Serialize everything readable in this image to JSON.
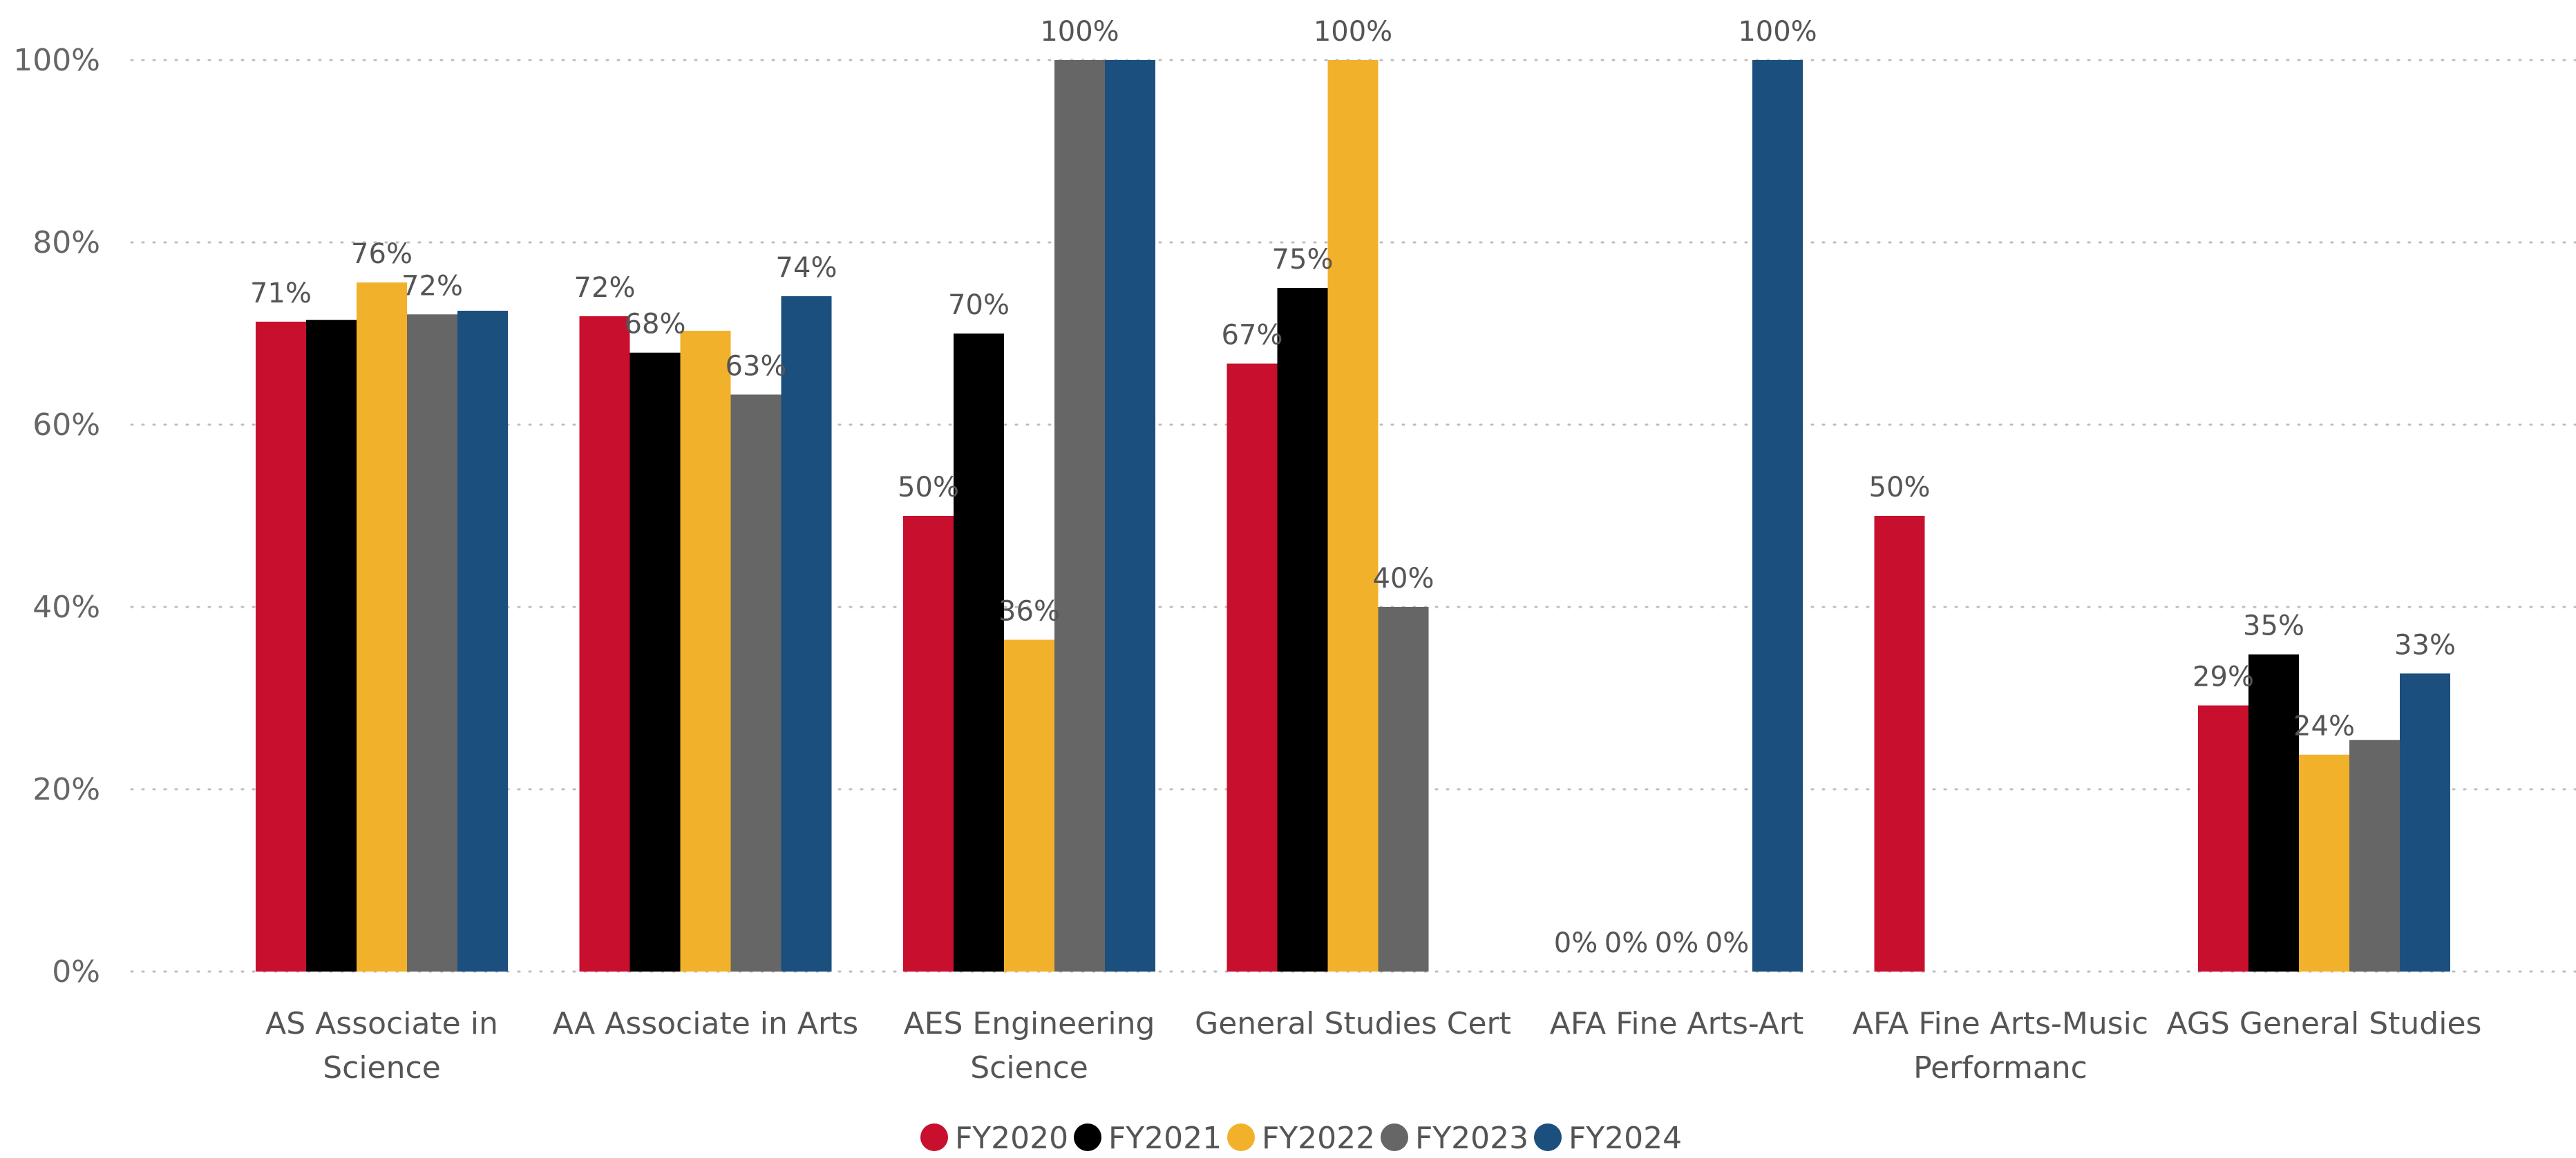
{
  "chart_data": {
    "type": "bar",
    "title": "",
    "xlabel": "",
    "ylabel": "",
    "ylim": [
      0,
      100
    ],
    "yticks": [
      0,
      20,
      40,
      60,
      80,
      100
    ],
    "ytick_labels": [
      "0%",
      "20%",
      "40%",
      "60%",
      "80%",
      "100%"
    ],
    "grid": true,
    "legend_position": "bottom-center",
    "categories": [
      [
        "AS Associate in",
        "Science"
      ],
      [
        "AA Associate in Arts"
      ],
      [
        "AES Engineering",
        "Science"
      ],
      [
        "General Studies Cert"
      ],
      [
        "AFA Fine Arts-Art"
      ],
      [
        "AFA Fine Arts-Music",
        "Performanc"
      ],
      [
        "AGS General Studies"
      ]
    ],
    "series": [
      {
        "name": "FY2020",
        "color": "#c8102e",
        "values": [
          71.3,
          71.9,
          50,
          66.7,
          0,
          50,
          29.2
        ],
        "labels": [
          "71%",
          "72%",
          "50%",
          "67%",
          "0%",
          "50%",
          "29%"
        ]
      },
      {
        "name": "FY2021",
        "color": "#000000",
        "values": [
          71.5,
          67.9,
          70,
          75,
          0,
          null,
          34.8
        ],
        "labels": [
          "",
          "68%",
          "70%",
          "75%",
          "0%",
          "",
          "35%"
        ]
      },
      {
        "name": "FY2022",
        "color": "#f2b12b",
        "values": [
          75.6,
          70.3,
          36.4,
          100,
          0,
          null,
          23.8
        ],
        "labels": [
          "76%",
          "",
          "36%",
          "100%",
          "0%",
          "",
          "24%"
        ]
      },
      {
        "name": "FY2023",
        "color": "#666666",
        "values": [
          72.1,
          63.3,
          100,
          40,
          0,
          null,
          25.4
        ],
        "labels": [
          "72%",
          "63%",
          "100%",
          "40%",
          "0%",
          "",
          ""
        ]
      },
      {
        "name": "FY2024",
        "color": "#1b4f7e",
        "values": [
          72.5,
          74.1,
          100,
          null,
          100,
          null,
          32.7
        ],
        "labels": [
          "",
          "74%",
          "",
          "",
          "100%",
          "",
          "33%"
        ]
      }
    ]
  }
}
